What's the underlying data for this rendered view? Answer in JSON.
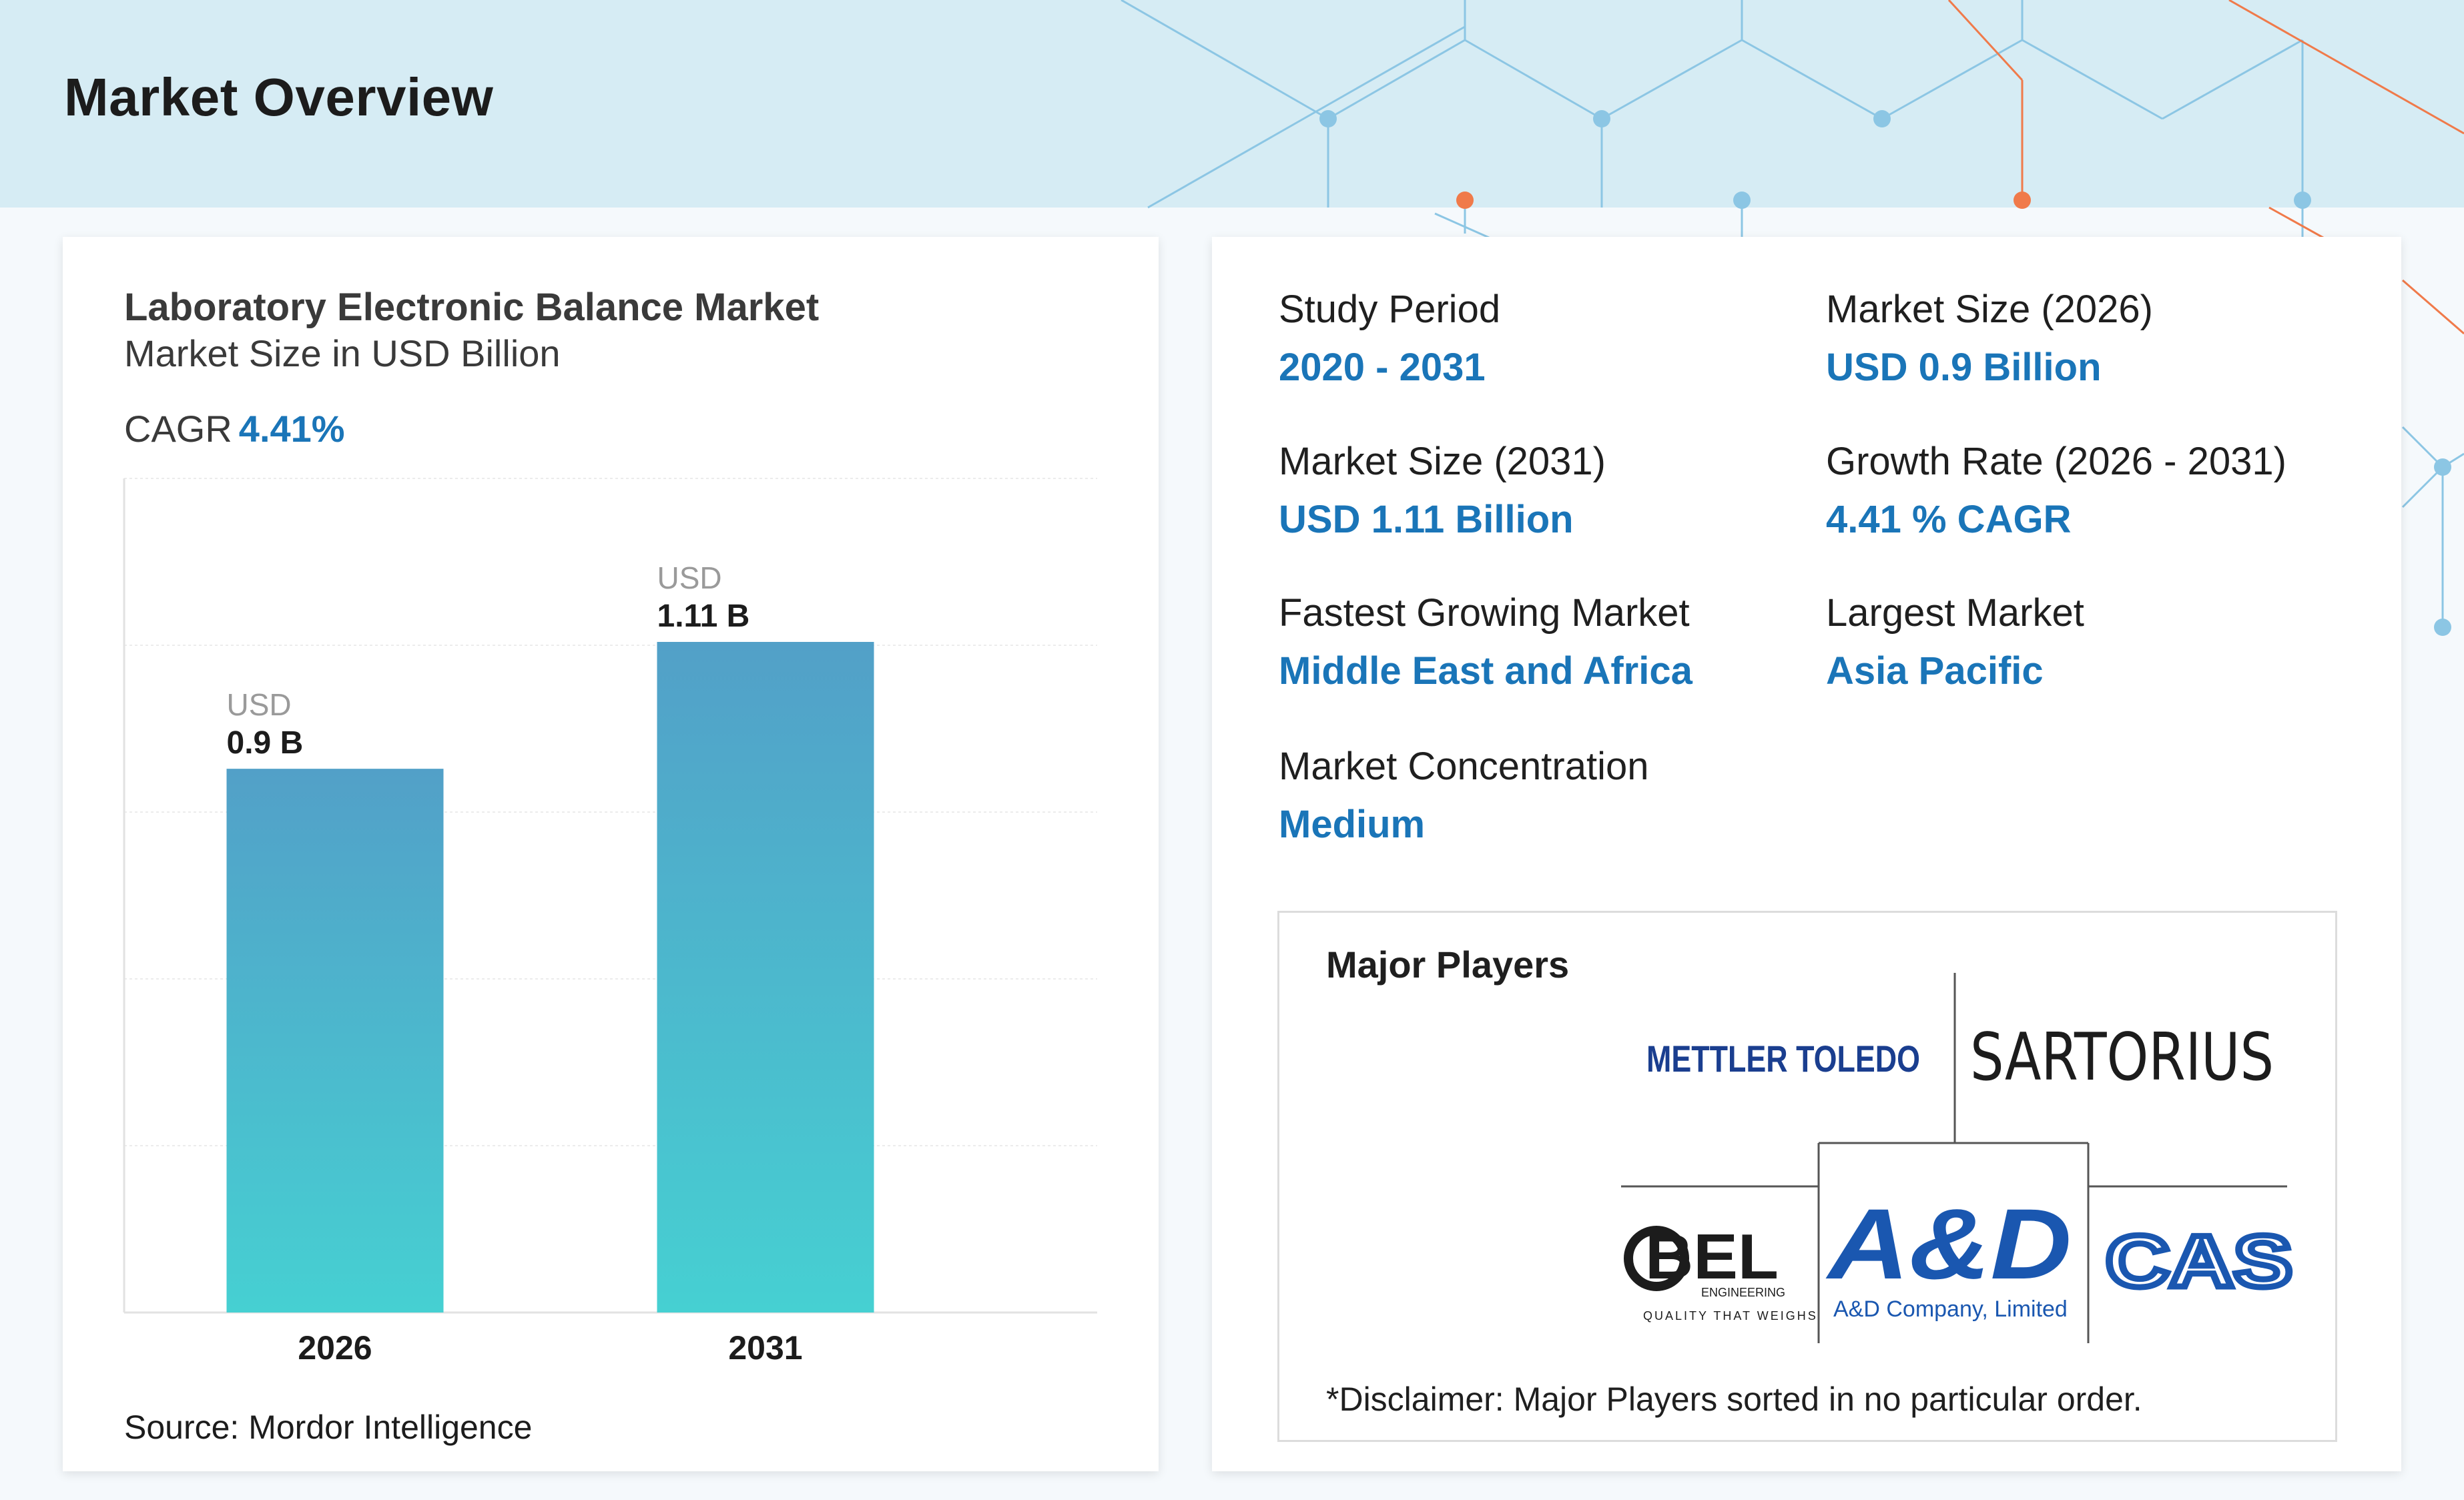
{
  "page": {
    "title": "Market Overview"
  },
  "chart_card": {
    "title": "Laboratory Electronic Balance Market",
    "subtitle": "Market Size in USD Billion",
    "cagr_label": "CAGR",
    "cagr_value": "4.41%",
    "source": "Source: Mordor Intelligence"
  },
  "chart_data": {
    "type": "bar",
    "categories": [
      "2026",
      "2031"
    ],
    "values": [
      0.9,
      1.11
    ],
    "value_labels": [
      "0.9 B",
      "1.11 B"
    ],
    "value_prefix": "USD",
    "title": "Laboratory Electronic Balance Market",
    "ylabel": "Market Size in USD Billion",
    "ylim": [
      0,
      1.11
    ],
    "grid": true,
    "bar_gradient": [
      "#52a0c8",
      "#46d0d2"
    ]
  },
  "stats": [
    {
      "label": "Study Period",
      "value": "2020 - 2031"
    },
    {
      "label": "Market Size (2026)",
      "value": "USD 0.9 Billion"
    },
    {
      "label": "Market Size (2031)",
      "value": "USD 1.11 Billion"
    },
    {
      "label": "Growth Rate (2026 - 2031)",
      "value": "4.41 % CAGR"
    },
    {
      "label": "Fastest Growing Market",
      "value": "Middle East and Africa"
    },
    {
      "label": "Largest Market",
      "value": "Asia Pacific"
    },
    {
      "label": "Market Concentration",
      "value": "Medium"
    }
  ],
  "players": {
    "title": "Major Players",
    "logos": [
      {
        "name": "METTLER TOLEDO",
        "color": "#1a3e8f"
      },
      {
        "name": "SARTORIUS",
        "color": "#1c1c1c"
      },
      {
        "name": "BEL",
        "sub1": "ENGINEERING",
        "sub2": "QUALITY THAT WEIGHS",
        "color": "#1c1c1c"
      },
      {
        "name": "A&D",
        "sub1": "A&D Company, Limited",
        "color": "#1a57b0"
      },
      {
        "name": "CAS",
        "color": "#1a57b0"
      }
    ],
    "disclaimer": "*Disclaimer: Major Players sorted in no particular order."
  },
  "colors": {
    "accent": "#1a75b8",
    "header_band": "#d6ecf4",
    "net_blue": "#8cc6e4",
    "net_orange": "#f07a4a"
  }
}
